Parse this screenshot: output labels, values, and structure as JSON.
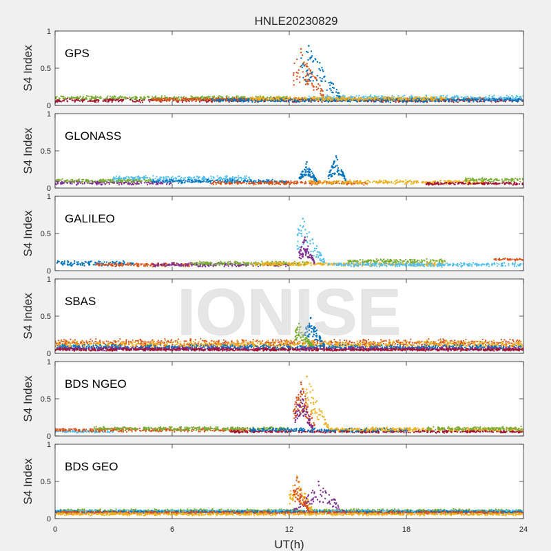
{
  "chart_data": {
    "type": "scatter",
    "title": "HNLE20230829",
    "xlabel": "UT(h)",
    "ylabel": "S4 Index",
    "xlim": [
      0,
      24
    ],
    "xticks": [
      0,
      6,
      12,
      18,
      24
    ],
    "xtick_labels": [
      "0",
      "6",
      "12",
      "18",
      "24"
    ],
    "ylim": [
      0,
      1
    ],
    "yticks": [
      0,
      0.5,
      1
    ],
    "ytick_labels": [
      "0",
      "0.5",
      "1"
    ],
    "watermark": "IONISE",
    "series_colors": [
      "#0072bd",
      "#d95319",
      "#edb120",
      "#7e2f8e",
      "#77ac30",
      "#4dbeee",
      "#a2142f"
    ],
    "panels": [
      {
        "label": "GPS",
        "background": [
          {
            "color": "#a2142f",
            "x": [
              0,
              24
            ],
            "mean": 0.07,
            "spread": 0.03
          },
          {
            "color": "#77ac30",
            "x": [
              0,
              12
            ],
            "mean": 0.1,
            "spread": 0.03
          },
          {
            "color": "#d95319",
            "x": [
              5,
              22
            ],
            "mean": 0.08,
            "spread": 0.03
          },
          {
            "color": "#4dbeee",
            "x": [
              13,
              24
            ],
            "mean": 0.1,
            "spread": 0.04
          },
          {
            "color": "#0072bd",
            "x": [
              8,
              24
            ],
            "mean": 0.07,
            "spread": 0.03
          },
          {
            "color": "#edb120",
            "x": [
              10,
              20
            ],
            "mean": 0.09,
            "spread": 0.03
          }
        ],
        "bursts": [
          {
            "color": "#d95319",
            "x": [
              12.2,
              13.8
            ],
            "peak_x": 12.6,
            "peak": 0.76
          },
          {
            "color": "#0072bd",
            "x": [
              12.6,
              14.6
            ],
            "peak_x": 13.0,
            "peak": 0.8
          }
        ]
      },
      {
        "label": "GLONASS",
        "background": [
          {
            "color": "#7e2f8e",
            "x": [
              0,
              6
            ],
            "mean": 0.07,
            "spread": 0.03
          },
          {
            "color": "#77ac30",
            "x": [
              0,
              5
            ],
            "mean": 0.1,
            "spread": 0.03
          },
          {
            "color": "#4dbeee",
            "x": [
              3,
              10
            ],
            "mean": 0.13,
            "spread": 0.04
          },
          {
            "color": "#0072bd",
            "x": [
              5,
              12
            ],
            "mean": 0.09,
            "spread": 0.03
          },
          {
            "color": "#d95319",
            "x": [
              8,
              16
            ],
            "mean": 0.07,
            "spread": 0.03
          },
          {
            "color": "#edb120",
            "x": [
              13,
              22
            ],
            "mean": 0.08,
            "spread": 0.03
          },
          {
            "color": "#a2142f",
            "x": [
              19,
              24
            ],
            "mean": 0.06,
            "spread": 0.02
          },
          {
            "color": "#77ac30",
            "x": [
              21,
              24
            ],
            "mean": 0.11,
            "spread": 0.03
          }
        ],
        "bursts": [
          {
            "color": "#0072bd",
            "x": [
              12.5,
              13.4
            ],
            "peak_x": 12.9,
            "peak": 0.35
          },
          {
            "color": "#0072bd",
            "x": [
              14,
              14.9
            ],
            "peak_x": 14.4,
            "peak": 0.43
          }
        ]
      },
      {
        "label": "GALILEO",
        "background": [
          {
            "color": "#0072bd",
            "x": [
              0,
              4
            ],
            "mean": 0.1,
            "spread": 0.04
          },
          {
            "color": "#d95319",
            "x": [
              2,
              7
            ],
            "mean": 0.08,
            "spread": 0.03
          },
          {
            "color": "#7e2f8e",
            "x": [
              5,
              12
            ],
            "mean": 0.08,
            "spread": 0.03
          },
          {
            "color": "#77ac30",
            "x": [
              7,
              13
            ],
            "mean": 0.1,
            "spread": 0.03
          },
          {
            "color": "#edb120",
            "x": [
              10,
              20
            ],
            "mean": 0.09,
            "spread": 0.03
          },
          {
            "color": "#77ac30",
            "x": [
              15,
              20
            ],
            "mean": 0.13,
            "spread": 0.03
          },
          {
            "color": "#4dbeee",
            "x": [
              14,
              24
            ],
            "mean": 0.08,
            "spread": 0.03
          },
          {
            "color": "#d95319",
            "x": [
              22.5,
              24
            ],
            "mean": 0.15,
            "spread": 0.02
          }
        ],
        "bursts": [
          {
            "color": "#4dbeee",
            "x": [
              12.4,
              13.8
            ],
            "peak_x": 12.7,
            "peak": 0.7
          },
          {
            "color": "#7e2f8e",
            "x": [
              12.5,
              13.3
            ],
            "peak_x": 12.8,
            "peak": 0.45
          }
        ]
      },
      {
        "label": "SBAS",
        "background": [
          {
            "color": "#d95319",
            "x": [
              0,
              24
            ],
            "mean": 0.14,
            "spread": 0.06
          },
          {
            "color": "#edb120",
            "x": [
              0,
              24
            ],
            "mean": 0.12,
            "spread": 0.06
          },
          {
            "color": "#0072bd",
            "x": [
              0,
              24
            ],
            "mean": 0.08,
            "spread": 0.04
          },
          {
            "color": "#7e2f8e",
            "x": [
              0,
              24
            ],
            "mean": 0.06,
            "spread": 0.03
          },
          {
            "color": "#a2142f",
            "x": [
              0,
              24
            ],
            "mean": 0.05,
            "spread": 0.02
          }
        ],
        "bursts": [
          {
            "color": "#77ac30",
            "x": [
              12.3,
              13.2
            ],
            "peak_x": 12.5,
            "peak": 0.4
          },
          {
            "color": "#0072bd",
            "x": [
              12.8,
              13.8
            ],
            "peak_x": 13.1,
            "peak": 0.48
          }
        ]
      },
      {
        "label": "BDS NGEO",
        "background": [
          {
            "color": "#4dbeee",
            "x": [
              0,
              3
            ],
            "mean": 0.06,
            "spread": 0.02
          },
          {
            "color": "#d95319",
            "x": [
              0,
              10
            ],
            "mean": 0.08,
            "spread": 0.03
          },
          {
            "color": "#77ac30",
            "x": [
              2,
              12
            ],
            "mean": 0.1,
            "spread": 0.03
          },
          {
            "color": "#a2142f",
            "x": [
              9,
              24
            ],
            "mean": 0.06,
            "spread": 0.02
          },
          {
            "color": "#0072bd",
            "x": [
              10,
              18
            ],
            "mean": 0.08,
            "spread": 0.03
          },
          {
            "color": "#edb120",
            "x": [
              14,
              24
            ],
            "mean": 0.09,
            "spread": 0.03
          },
          {
            "color": "#77ac30",
            "x": [
              19,
              24
            ],
            "mean": 0.1,
            "spread": 0.03
          }
        ],
        "bursts": [
          {
            "color": "#edb120",
            "x": [
              12.5,
              14
            ],
            "peak_x": 12.9,
            "peak": 0.8
          },
          {
            "color": "#d95319",
            "x": [
              12.2,
              13.3
            ],
            "peak_x": 12.6,
            "peak": 0.72
          },
          {
            "color": "#7e2f8e",
            "x": [
              12.3,
              13.2
            ],
            "peak_x": 12.6,
            "peak": 0.6
          }
        ]
      },
      {
        "label": "BDS GEO",
        "background": [
          {
            "color": "#77ac30",
            "x": [
              0,
              24
            ],
            "mean": 0.11,
            "spread": 0.02
          },
          {
            "color": "#4dbeee",
            "x": [
              0,
              24
            ],
            "mean": 0.1,
            "spread": 0.02
          },
          {
            "color": "#0072bd",
            "x": [
              0,
              24
            ],
            "mean": 0.09,
            "spread": 0.02
          },
          {
            "color": "#d95319",
            "x": [
              0,
              24
            ],
            "mean": 0.08,
            "spread": 0.02
          },
          {
            "color": "#edb120",
            "x": [
              0,
              24
            ],
            "mean": 0.06,
            "spread": 0.02
          }
        ],
        "bursts": [
          {
            "color": "#edb120",
            "x": [
              12,
              13.2
            ],
            "peak_x": 12.4,
            "peak": 0.57
          },
          {
            "color": "#7e2f8e",
            "x": [
              12.2,
              14.8
            ],
            "peak_x": 13.5,
            "peak": 0.5
          },
          {
            "color": "#d95319",
            "x": [
              12.2,
              13
            ],
            "peak_x": 12.4,
            "peak": 0.55
          }
        ]
      }
    ]
  }
}
